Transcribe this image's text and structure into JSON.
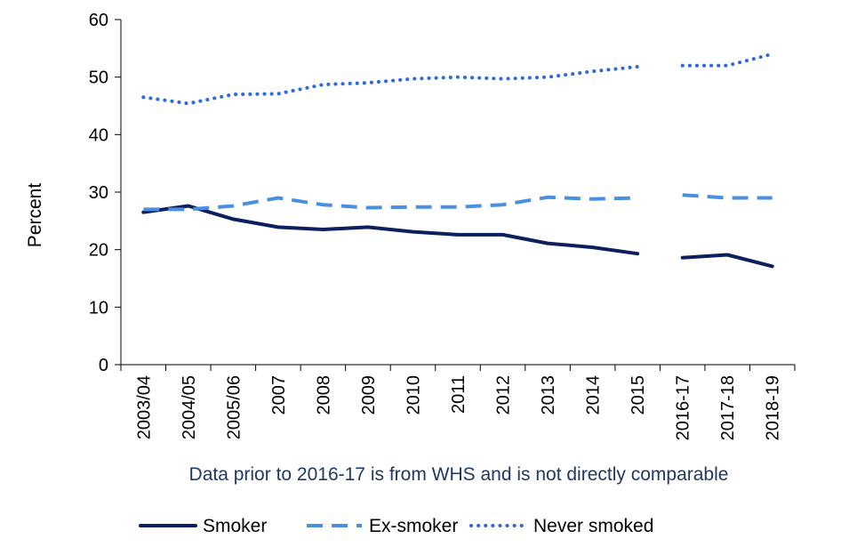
{
  "chart_data": {
    "type": "line",
    "categories": [
      "2003/04",
      "2004/05",
      "2005/06",
      "2007",
      "2008",
      "2009",
      "2010",
      "2011",
      "2012",
      "2013",
      "2014",
      "2015",
      "2016-17",
      "2017-18",
      "2018-19"
    ],
    "series": [
      {
        "name": "Smoker",
        "color": "#0d1f5c",
        "style": "solid",
        "values": [
          26.5,
          27.6,
          25.3,
          23.9,
          23.5,
          23.9,
          23.1,
          22.6,
          22.6,
          21.1,
          20.4,
          19.3,
          18.6,
          19.1,
          17.1
        ]
      },
      {
        "name": "Ex-smoker",
        "color": "#4a8fe0",
        "style": "dashed",
        "values": [
          27.0,
          27.0,
          27.6,
          29.0,
          27.8,
          27.3,
          27.4,
          27.4,
          27.8,
          29.1,
          28.8,
          29.0,
          29.5,
          29.0,
          29.0
        ]
      },
      {
        "name": "Never smoked",
        "color": "#2e6ad8",
        "style": "dotted",
        "values": [
          46.5,
          45.4,
          47.0,
          47.1,
          48.7,
          49.0,
          49.7,
          50.0,
          49.7,
          50.0,
          51.0,
          51.8,
          52.0,
          52.0,
          54.0
        ]
      }
    ],
    "break_after_index": 11,
    "ylim": [
      0,
      60
    ],
    "yticks": [
      "0",
      "10",
      "20",
      "30",
      "40",
      "50",
      "60"
    ],
    "ylabel": "Percent",
    "xlabel": "Data prior to 2016-17 is from WHS and is not directly comparable",
    "grid": false,
    "legend_position": "bottom"
  }
}
